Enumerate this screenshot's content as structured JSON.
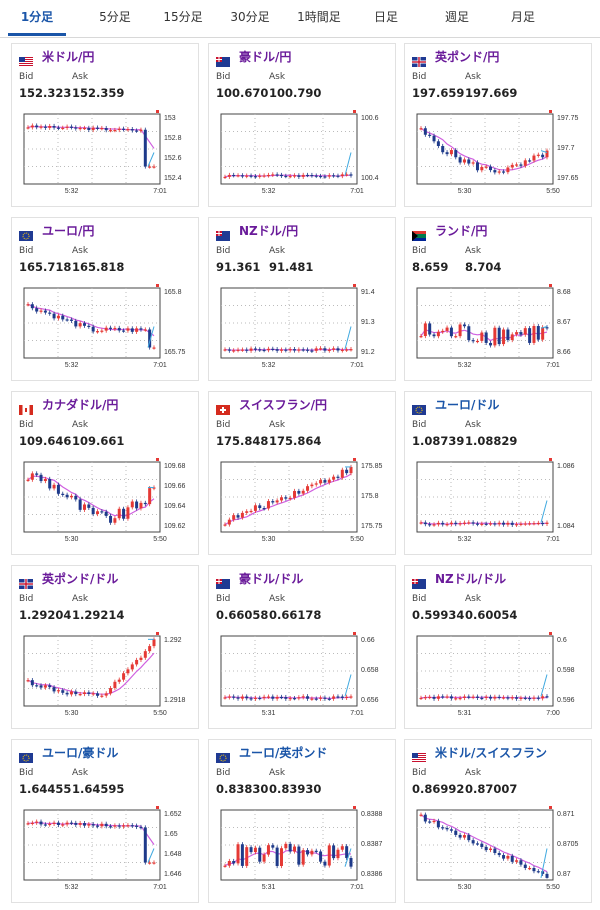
{
  "tabs": [
    {
      "label": "1分足",
      "active": true
    },
    {
      "label": "5分足",
      "active": false
    },
    {
      "label": "15分足",
      "active": false
    },
    {
      "label": "30分足",
      "active": false
    },
    {
      "label": "1時間足",
      "active": false
    },
    {
      "label": "日足",
      "active": false
    },
    {
      "label": "週足",
      "active": false
    },
    {
      "label": "月足",
      "active": false
    }
  ],
  "quote_labels": {
    "bid": "Bid",
    "ask": "Ask"
  },
  "colors": {
    "pair_purple": "#6a1b9a",
    "pair_blue": "#1a55a8",
    "candle_up": "#e53935",
    "candle_down": "#1e3a8a",
    "ma": "#d060e0",
    "line": "#3fa9e0"
  },
  "cards": [
    {
      "pair": "米ドル/円",
      "flag": "us-flag-icon",
      "bid": "152.323",
      "ask": "152.359",
      "chart_data": {
        "type": "candlestick",
        "y_ticks": [
          "153",
          "152.8",
          "152.6",
          "152.4"
        ],
        "x_ticks": [
          "5:32",
          "7:01"
        ],
        "trend": "flat-down"
      }
    },
    {
      "pair": "豪ドル/円",
      "flag": "au-flag-icon",
      "bid": "100.670",
      "ask": "100.790",
      "chart_data": {
        "type": "candlestick",
        "y_ticks": [
          "100.6",
          "100.4"
        ],
        "x_ticks": [
          "5:32",
          "7:01"
        ],
        "trend": "flat-up"
      }
    },
    {
      "pair": "英ポンド/円",
      "flag": "gb-flag-icon",
      "bid": "197.659",
      "ask": "197.669",
      "chart_data": {
        "type": "candlestick",
        "y_ticks": [
          "197.75",
          "197.7",
          "197.65"
        ],
        "x_ticks": [
          "5:30",
          "5:50"
        ],
        "trend": "down-recover"
      }
    },
    {
      "pair": "ユーロ/円",
      "flag": "eu-flag-icon",
      "bid": "165.718",
      "ask": "165.818",
      "chart_data": {
        "type": "candlestick",
        "y_ticks": [
          "165.8",
          "165.75"
        ],
        "x_ticks": [
          "5:32",
          "7:01"
        ],
        "trend": "down-flat"
      }
    },
    {
      "pair": "NZドル/円",
      "flag": "nz-flag-icon",
      "bid": "91.361",
      "ask": "91.481",
      "chart_data": {
        "type": "candlestick",
        "y_ticks": [
          "91.4",
          "91.3",
          "91.2"
        ],
        "x_ticks": [
          "5:32",
          "7:01"
        ],
        "trend": "flat-up"
      }
    },
    {
      "pair": "ランド/円",
      "flag": "za-flag-icon",
      "bid": "8.659",
      "ask": "8.704",
      "chart_data": {
        "type": "candlestick",
        "y_ticks": [
          "8.68",
          "8.67",
          "8.66"
        ],
        "x_ticks": [
          "5:32",
          "7:01"
        ],
        "trend": "volatile"
      }
    },
    {
      "pair": "カナダドル/円",
      "flag": "ca-flag-icon",
      "bid": "109.646",
      "ask": "109.661",
      "chart_data": {
        "type": "candlestick",
        "y_ticks": [
          "109.68",
          "109.66",
          "109.64",
          "109.62"
        ],
        "x_ticks": [
          "5:30",
          "5:50"
        ],
        "trend": "dip-recover"
      }
    },
    {
      "pair": "スイスフラン/円",
      "flag": "ch-flag-icon",
      "bid": "175.848",
      "ask": "175.864",
      "chart_data": {
        "type": "candlestick",
        "y_ticks": [
          "175.85",
          "175.8",
          "175.75"
        ],
        "x_ticks": [
          "5:30",
          "5:50"
        ],
        "trend": "up"
      }
    },
    {
      "pair": "ユーロ/ドル",
      "flag": "eu-us-flag-icon",
      "bid": "1.08739",
      "ask": "1.08829",
      "blue": true,
      "chart_data": {
        "type": "candlestick",
        "y_ticks": [
          "1.086",
          "1.084"
        ],
        "x_ticks": [
          "5:32",
          "7:01"
        ],
        "trend": "flat-up"
      }
    },
    {
      "pair": "英ポンド/ドル",
      "flag": "gb-us-flag-icon",
      "bid": "1.29204",
      "ask": "1.29214",
      "chart_data": {
        "type": "candlestick",
        "y_ticks": [
          "1.292",
          "1.2918"
        ],
        "x_ticks": [
          "5:30",
          "5:50"
        ],
        "trend": "dip-up"
      }
    },
    {
      "pair": "豪ドル/ドル",
      "flag": "au-us-flag-icon",
      "bid": "0.66058",
      "ask": "0.66178",
      "chart_data": {
        "type": "candlestick",
        "y_ticks": [
          "0.66",
          "0.658",
          "0.656"
        ],
        "x_ticks": [
          "5:31",
          "7:01"
        ],
        "trend": "flat-up"
      }
    },
    {
      "pair": "NZドル/ドル",
      "flag": "nz-us-flag-icon",
      "bid": "0.59934",
      "ask": "0.60054",
      "chart_data": {
        "type": "candlestick",
        "y_ticks": [
          "0.6",
          "0.598",
          "0.596"
        ],
        "x_ticks": [
          "5:31",
          "7:00"
        ],
        "trend": "flat-up"
      }
    },
    {
      "pair": "ユーロ/豪ドル",
      "flag": "eu-au-flag-icon",
      "bid": "1.64455",
      "ask": "1.64595",
      "blue": true,
      "chart_data": {
        "type": "candlestick",
        "y_ticks": [
          "1.652",
          "1.65",
          "1.648",
          "1.646"
        ],
        "x_ticks": [
          "5:32",
          "7:01"
        ],
        "trend": "flat-down"
      }
    },
    {
      "pair": "ユーロ/英ポンド",
      "flag": "eu-gb-flag-icon",
      "bid": "0.83830",
      "ask": "0.83930",
      "blue": true,
      "chart_data": {
        "type": "candlestick",
        "y_ticks": [
          "0.8388",
          "0.8387",
          "0.8386"
        ],
        "x_ticks": [
          "5:31",
          "7:01"
        ],
        "trend": "volatile"
      }
    },
    {
      "pair": "米ドル/スイスフラン",
      "flag": "us-ch-flag-icon",
      "bid": "0.86992",
      "ask": "0.87007",
      "blue": true,
      "chart_data": {
        "type": "candlestick",
        "y_ticks": [
          "0.871",
          "0.8705",
          "0.87"
        ],
        "x_ticks": [
          "5:30",
          "5:50"
        ],
        "trend": "down"
      }
    }
  ]
}
